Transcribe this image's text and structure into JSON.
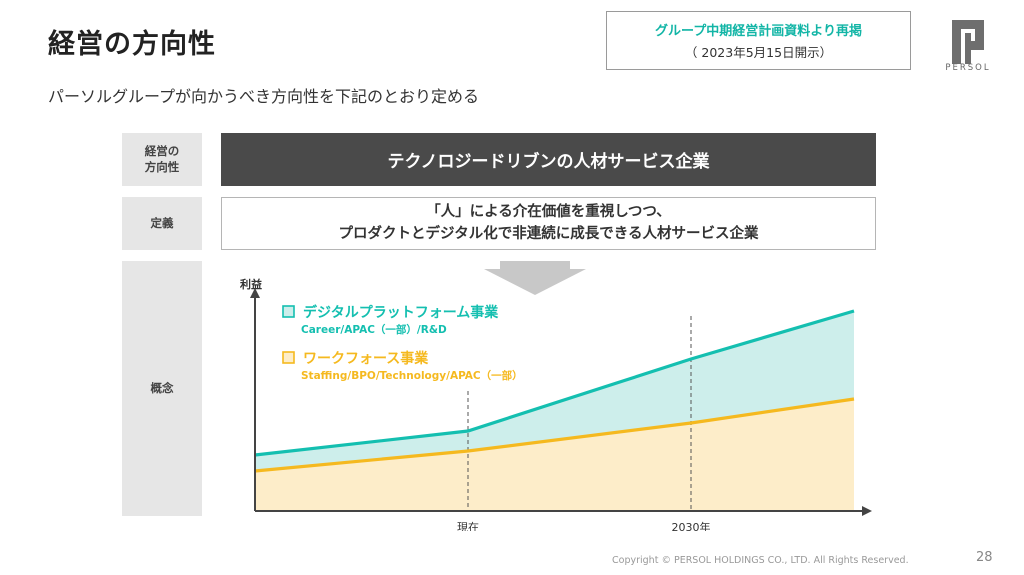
{
  "slide": {
    "title": "経営の方向性",
    "subtitle": "パーソルグループが向かうべき方向性を下記のとおり定める",
    "source_main": "グループ中期経営計画資料より再掲",
    "source_sub": "（ 2023年5月15日開示）",
    "logo_text": "PERSOL",
    "footer": "Copyright © PERSOL HOLDINGS CO., LTD. All Rights Reserved.",
    "page": "28"
  },
  "rows": {
    "direction_label_1": "経営の",
    "direction_label_2": "方向性",
    "direction_text": "テクノロジードリブンの人材サービス企業",
    "definition_label": "定義",
    "definition_line1": "「人」による介在価値を重視しつつ、",
    "definition_line2": "プロダクトとデジタル化で非連続に成長できる人材サービス企業",
    "concept_label": "概念"
  },
  "colors": {
    "digital": "#14bfb0",
    "digital_fill": "#cdeeeb",
    "workforce": "#f5b91f",
    "workforce_fill": "#fdedc9",
    "dark_bar": "#4a4a4a"
  },
  "chart_data": {
    "type": "area",
    "ylabel": "利益",
    "x_ticks": [
      "現在",
      "2030年"
    ],
    "series": [
      {
        "name": "デジタルプラットフォーム事業",
        "sub": "Career/APAC（一部）/R&D",
        "values": [
          0.28,
          0.4,
          0.76,
          1.0
        ]
      },
      {
        "name": "ワークフォース事業",
        "sub": "Staffing/BPO/Technology/APAC（一部）",
        "values": [
          0.2,
          0.3,
          0.44,
          0.56
        ]
      }
    ]
  }
}
